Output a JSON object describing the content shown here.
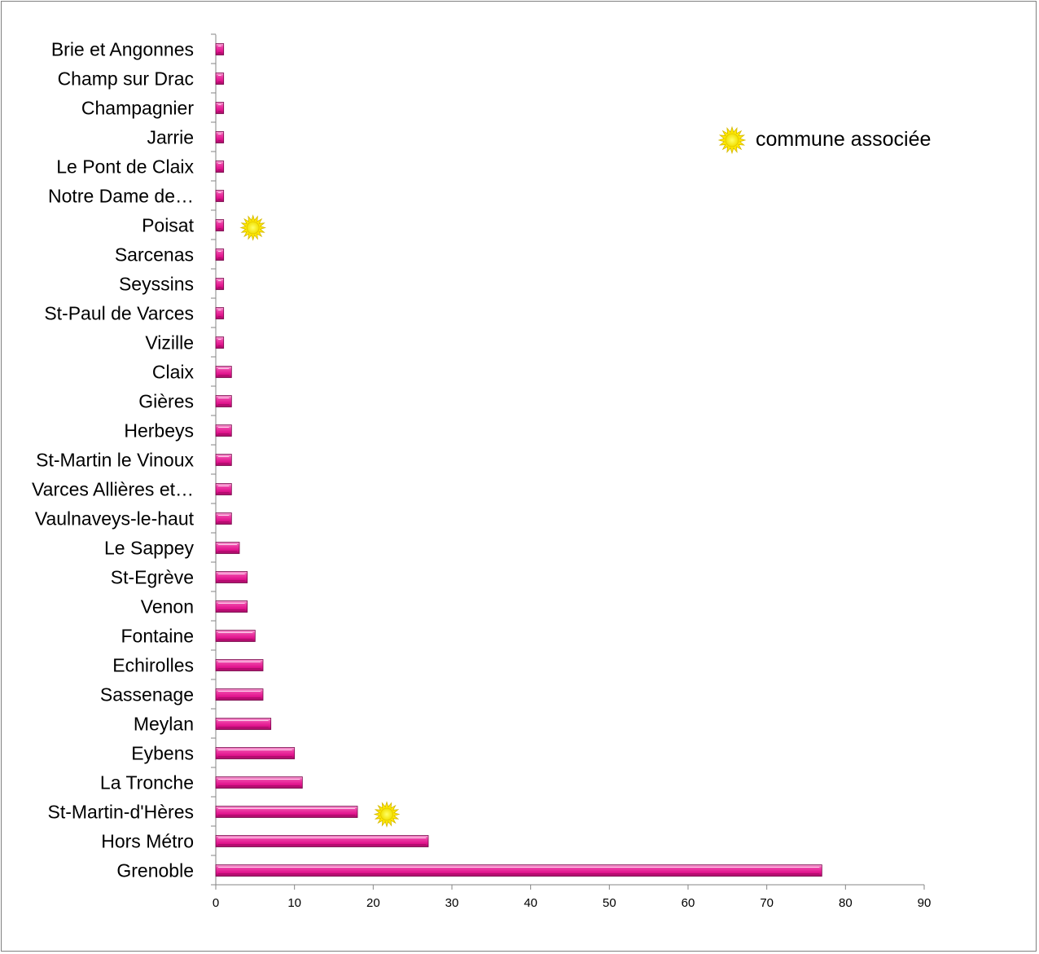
{
  "chart_data": {
    "type": "bar",
    "orientation": "horizontal",
    "categories": [
      "Grenoble",
      "Hors Métro",
      "St-Martin-d'Hères",
      "La Tronche",
      "Eybens",
      "Meylan",
      "Sassenage",
      "Echirolles",
      "Fontaine",
      "Venon",
      "St-Egrève",
      "Le Sappey",
      "Vaulnaveys-le-haut",
      "Varces Allières et…",
      "St-Martin le Vinoux",
      "Herbeys",
      "Gières",
      "Claix",
      "Vizille",
      "St-Paul de Varces",
      "Seyssins",
      "Sarcenas",
      "Poisat",
      "Notre Dame de…",
      "Le Pont de Claix",
      "Jarrie",
      "Champagnier",
      "Champ sur Drac",
      "Brie et Angonnes"
    ],
    "values": [
      77,
      27,
      18,
      11,
      10,
      7,
      6,
      6,
      5,
      4,
      4,
      3,
      2,
      2,
      2,
      2,
      2,
      2,
      1,
      1,
      1,
      1,
      1,
      1,
      1,
      1,
      1,
      1,
      1
    ],
    "xlim": [
      0,
      90
    ],
    "xticks": [
      0,
      10,
      20,
      30,
      40,
      50,
      60,
      70,
      80,
      90
    ],
    "bar_color": "#e6138f",
    "marked_categories": [
      "St-Martin-d'Hères",
      "Poisat"
    ],
    "legend": {
      "label": "commune associée",
      "icon": "sun-icon",
      "position": "top-right"
    },
    "grid": false
  }
}
